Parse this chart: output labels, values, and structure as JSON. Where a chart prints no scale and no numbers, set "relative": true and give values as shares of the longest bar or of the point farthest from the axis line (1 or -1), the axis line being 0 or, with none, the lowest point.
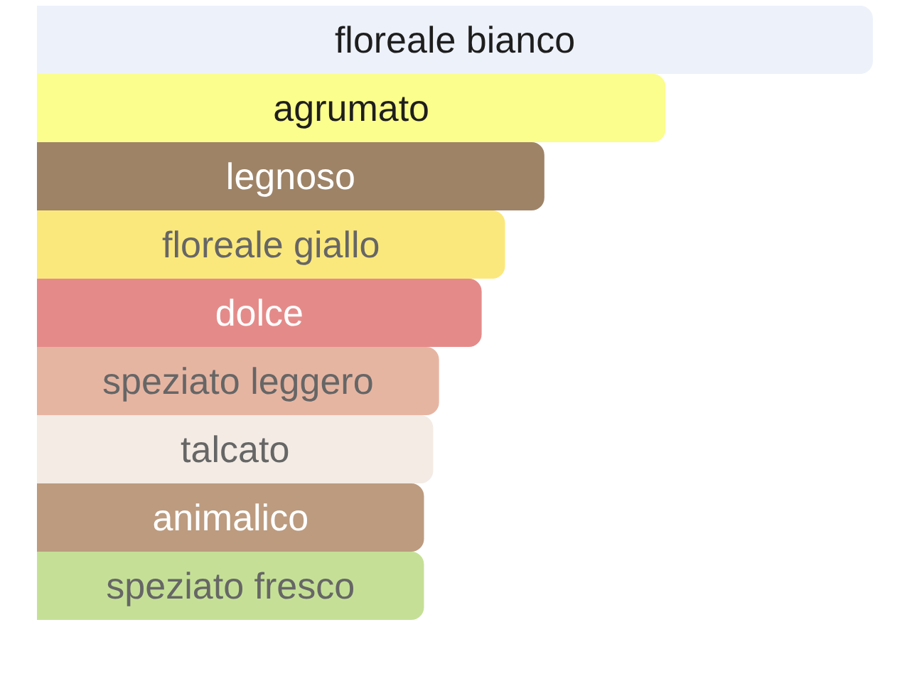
{
  "chart_data": {
    "type": "bar",
    "orientation": "horizontal",
    "relative": true,
    "categories": [
      "floreale bianco",
      "agrumato",
      "legnoso",
      "floreale giallo",
      "dolce",
      "speziato leggero",
      "talcato",
      "animalico",
      "speziato fresco"
    ],
    "values": [
      1,
      0.752,
      0.607,
      0.56,
      0.532,
      0.481,
      0.474,
      0.463,
      0.463
    ],
    "colors": [
      "#edf1fa",
      "#fbfd8c",
      "#9e8367",
      "#fbe87c",
      "#e48b8a",
      "#e6b5a2",
      "#f3ebe4",
      "#bc9b7f",
      "#c5e096"
    ]
  }
}
